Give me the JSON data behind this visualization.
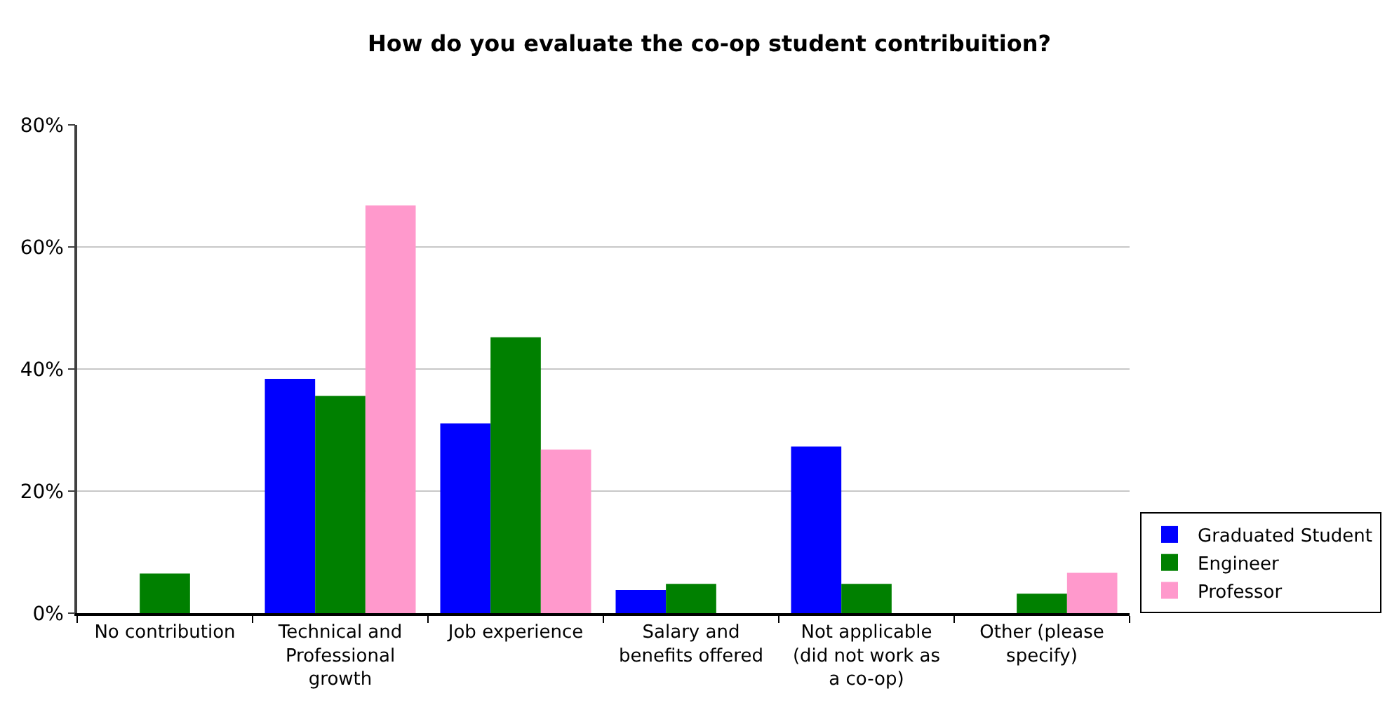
{
  "chart_data": {
    "type": "bar",
    "title": "How do you evaluate the co-op student contribuition?",
    "categories": [
      "No contribution",
      "Technical and\nProfessional\ngrowth",
      "Job experience",
      "Salary and\nbenefits offered",
      "Not applicable\n(did not work as\na co-op)",
      "Other (please\nspecify)"
    ],
    "series": [
      {
        "name": "Graduated Student",
        "color": "#0000ff",
        "values": [
          null,
          38.4,
          31.1,
          3.8,
          27.3,
          null
        ]
      },
      {
        "name": "Engineer",
        "color": "#008000",
        "values": [
          6.5,
          35.6,
          45.2,
          4.8,
          4.8,
          3.2
        ]
      },
      {
        "name": "Professor",
        "color": "#ff99cc",
        "values": [
          null,
          66.8,
          26.8,
          null,
          null,
          6.6
        ]
      }
    ],
    "ylim": [
      0,
      80
    ],
    "yticks": [
      {
        "value": 0,
        "label": "0%"
      },
      {
        "value": 20,
        "label": "20%"
      },
      {
        "value": 40,
        "label": "40%"
      },
      {
        "value": 60,
        "label": "60%"
      },
      {
        "value": 80,
        "label": "80%"
      }
    ],
    "grid": "y",
    "legend": "bottom right"
  }
}
